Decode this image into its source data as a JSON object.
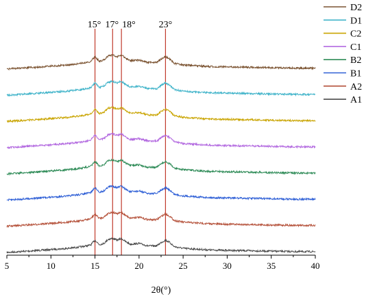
{
  "chart_data": {
    "type": "line",
    "title": "",
    "xlabel": "2θ(°)",
    "ylabel": "",
    "xlim": [
      5,
      40
    ],
    "x_ticks": [
      5,
      10,
      15,
      20,
      25,
      30,
      35,
      40
    ],
    "grid": false,
    "legend_position": "right",
    "reference_lines": [
      {
        "x": 15,
        "label": "15°",
        "color": "#c0392b"
      },
      {
        "x": 17,
        "label": "17°",
        "color": "#c0392b"
      },
      {
        "x": 18,
        "label": "18°",
        "color": "#c0392b"
      },
      {
        "x": 23,
        "label": "23°",
        "color": "#c0392b"
      }
    ],
    "series": [
      {
        "name": "A1",
        "color": "#4a4a4a",
        "stack_index": 0
      },
      {
        "name": "A2",
        "color": "#b5523b",
        "stack_index": 1
      },
      {
        "name": "B1",
        "color": "#2e5fd6",
        "stack_index": 2
      },
      {
        "name": "B2",
        "color": "#2e8b57",
        "stack_index": 3
      },
      {
        "name": "C1",
        "color": "#b36ae0",
        "stack_index": 4
      },
      {
        "name": "C2",
        "color": "#c9a400",
        "stack_index": 5
      },
      {
        "name": "D1",
        "color": "#3fb3c9",
        "stack_index": 6
      },
      {
        "name": "D2",
        "color": "#7a5230",
        "stack_index": 7
      }
    ],
    "legend_order": [
      "D2",
      "D1",
      "C2",
      "C1",
      "B2",
      "B1",
      "A2",
      "A1"
    ],
    "profile": {
      "x": [
        5,
        8,
        10,
        12,
        13.5,
        14.5,
        15,
        15.5,
        16,
        16.5,
        17,
        17.5,
        18,
        18.5,
        19,
        20,
        21,
        22,
        22.5,
        23,
        23.5,
        24,
        25,
        26.5,
        28,
        30,
        33,
        35,
        38,
        40
      ],
      "y": [
        0,
        4,
        7,
        10,
        14,
        18,
        30,
        19,
        22,
        32,
        34,
        30,
        34,
        26,
        20,
        22,
        16,
        16,
        24,
        30,
        24,
        14,
        10,
        8,
        6,
        5,
        4,
        3,
        2,
        2
      ]
    }
  }
}
